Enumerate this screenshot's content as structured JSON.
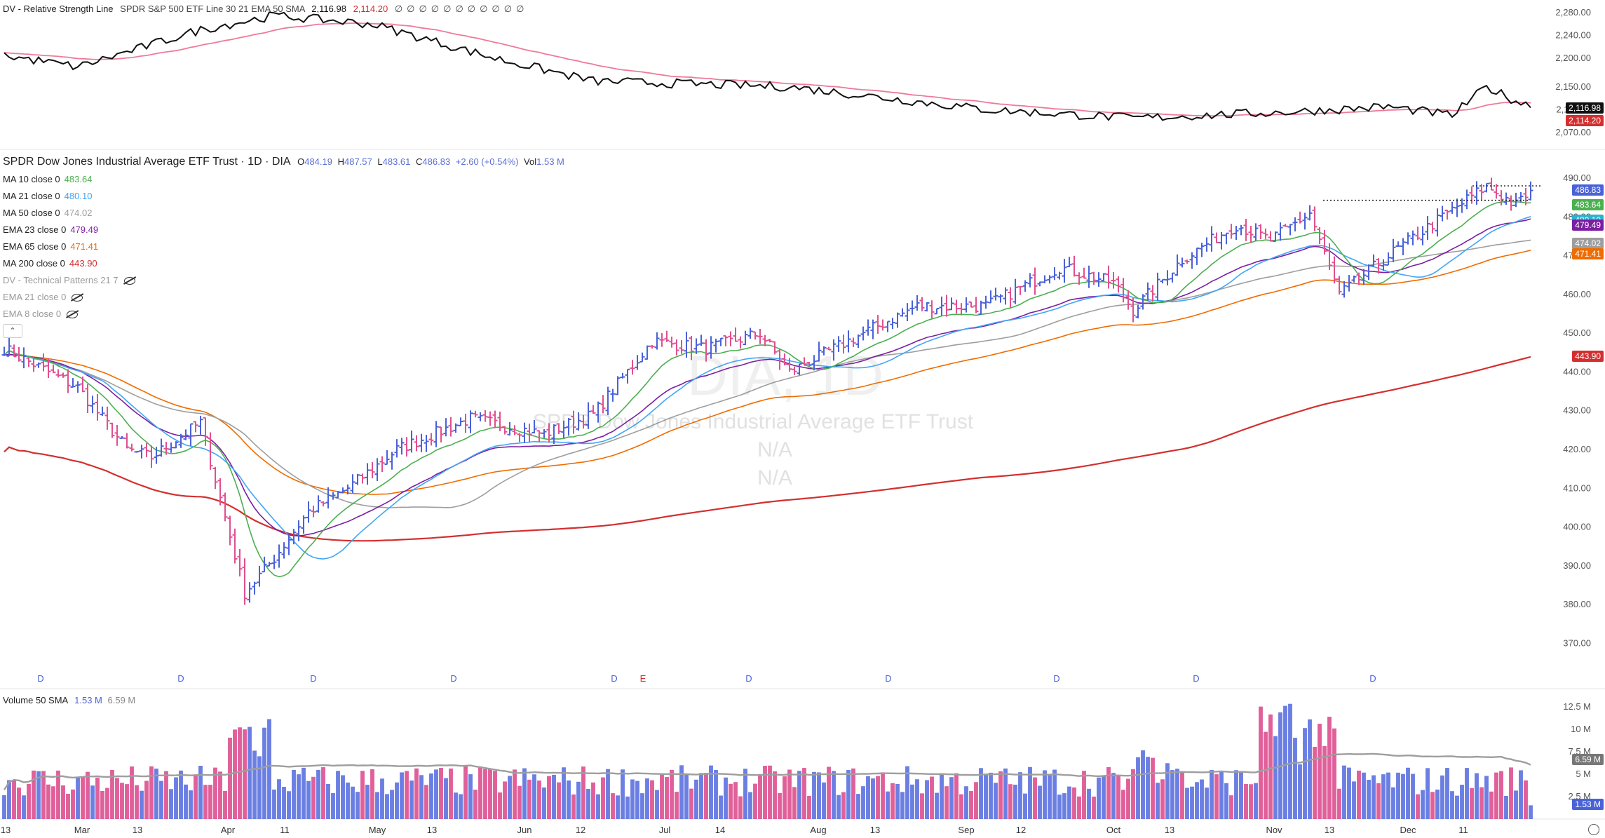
{
  "rs_panel": {
    "title": "DV - Relative Strength Line",
    "subtitle": "SPDR S&P 500 ETF Line 30 21 EMA 50 SMA",
    "value1": "2,116.98",
    "value2": "2,114.20",
    "axis": [
      "2,280.00",
      "2,240.00",
      "2,200.00",
      "2,150.00",
      "2,110.00",
      "2,070.00"
    ]
  },
  "main": {
    "title": "SPDR Dow Jones Industrial Average ETF Trust · 1D · DIA",
    "o_label": "O",
    "o": "484.19",
    "h_label": "H",
    "h": "487.57",
    "l_label": "L",
    "l": "483.61",
    "c_label": "C",
    "c": "486.83",
    "chg": "+2.60 (+0.54%)",
    "vol_label": "Vol",
    "vol": "1.53 M",
    "watermark_symbol": "DIA, 1D",
    "watermark_name": "SPDR Dow Jones Industrial Average ETF Trust",
    "watermark_na1": "N/A",
    "watermark_na2": "N/A",
    "legend": [
      {
        "label": "MA 10 close 0",
        "value": "483.64",
        "color": "#4caf50"
      },
      {
        "label": "MA 21 close 0",
        "value": "480.10",
        "color": "#42a5f5"
      },
      {
        "label": "MA 50 close 0",
        "value": "474.02",
        "color": "#9e9e9e"
      },
      {
        "label": "EMA 23 close 0",
        "value": "479.49",
        "color": "#7b1fa2"
      },
      {
        "label": "EMA 65 close 0",
        "value": "471.41",
        "color": "#ef6c00"
      },
      {
        "label": "MA 200 close 0",
        "value": "443.90",
        "color": "#d32f2f"
      }
    ],
    "hidden_legend": [
      {
        "label": "DV - Technical Patterns 21 7"
      },
      {
        "label": "EMA 21 close 0"
      },
      {
        "label": "EMA 8 close 0"
      }
    ],
    "axis": [
      "490.00",
      "480.00",
      "470.00",
      "460.00",
      "450.00",
      "440.00",
      "430.00",
      "420.00",
      "410.00",
      "400.00",
      "390.00",
      "380.00",
      "370.00"
    ],
    "price_tags": [
      {
        "value": "486.83",
        "color": "#4a62d8"
      },
      {
        "value": "483.64",
        "color": "#4caf50"
      },
      {
        "value": "480.10",
        "color": "#2cb3d1"
      },
      {
        "value": "479.49",
        "color": "#7b1fa2"
      },
      {
        "value": "474.02",
        "color": "#9e9e9e"
      },
      {
        "value": "471.41",
        "color": "#ef6c00"
      },
      {
        "value": "443.90",
        "color": "#d32f2f"
      }
    ],
    "markers": [
      "D",
      "D",
      "D",
      "D",
      "D",
      "E",
      "D",
      "D",
      "D",
      "D",
      "D"
    ]
  },
  "volume_panel": {
    "title": "Volume 50 SMA",
    "v1": "1.53 M",
    "v2": "6.59 M",
    "axis": [
      "12.5 M",
      "10 M",
      "7.5 M",
      "5 M",
      "2.5 M"
    ],
    "tag_sma": "6.59 M",
    "tag_vol": "1.53 M"
  },
  "x_axis": [
    "13",
    "Mar",
    "13",
    "Apr",
    "11",
    "May",
    "13",
    "Jun",
    "12",
    "Jul",
    "14",
    "Aug",
    "13",
    "Sep",
    "12",
    "Oct",
    "13",
    "Nov",
    "13",
    "Dec",
    "11"
  ],
  "chart_data": {
    "type": "ohlc",
    "title": "SPDR Dow Jones Industrial Average ETF Trust · 1D · DIA",
    "x_range": [
      "Feb",
      "Dec"
    ],
    "ylim": [
      365,
      492
    ],
    "price_checkpoints": [
      [
        0,
        446
      ],
      [
        15,
        436
      ],
      [
        25,
        420
      ],
      [
        30,
        418
      ],
      [
        40,
        427
      ],
      [
        49,
        383
      ],
      [
        55,
        392
      ],
      [
        62,
        404
      ],
      [
        70,
        410
      ],
      [
        80,
        420
      ],
      [
        95,
        428
      ],
      [
        110,
        424
      ],
      [
        120,
        429
      ],
      [
        132,
        448
      ],
      [
        143,
        446
      ],
      [
        154,
        450
      ],
      [
        160,
        440
      ],
      [
        175,
        450
      ],
      [
        186,
        457
      ],
      [
        200,
        457
      ],
      [
        215,
        467
      ],
      [
        226,
        463
      ],
      [
        230,
        456
      ],
      [
        240,
        469
      ],
      [
        251,
        478
      ],
      [
        258,
        474
      ],
      [
        266,
        481
      ],
      [
        272,
        460
      ],
      [
        282,
        470
      ],
      [
        293,
        480
      ],
      [
        302,
        488
      ],
      [
        308,
        483
      ],
      [
        311,
        486.83
      ]
    ],
    "ma": {
      "ma10": {
        "name": "MA 10",
        "last": 483.64
      },
      "ma21": {
        "name": "MA 21",
        "last": 480.1
      },
      "ma50": {
        "name": "MA 50",
        "last": 474.02
      },
      "ema23": {
        "name": "EMA 23",
        "last": 479.49
      },
      "ema65": {
        "name": "EMA 65",
        "last": 471.41
      },
      "ma200": {
        "name": "MA 200",
        "last": 443.9
      }
    },
    "volume": {
      "ylim": [
        0,
        13.5
      ],
      "unit": "M",
      "sma50_last": 6.59,
      "last": 1.53
    },
    "rs_line": {
      "ylim": [
        2050,
        2290
      ],
      "last": 2116.98,
      "sma_last": 2114.2
    }
  },
  "colors": {
    "up": "#4a62d8",
    "down": "#e0508f",
    "vol_up": "#6b7fe3",
    "vol_down": "#e0609a"
  }
}
